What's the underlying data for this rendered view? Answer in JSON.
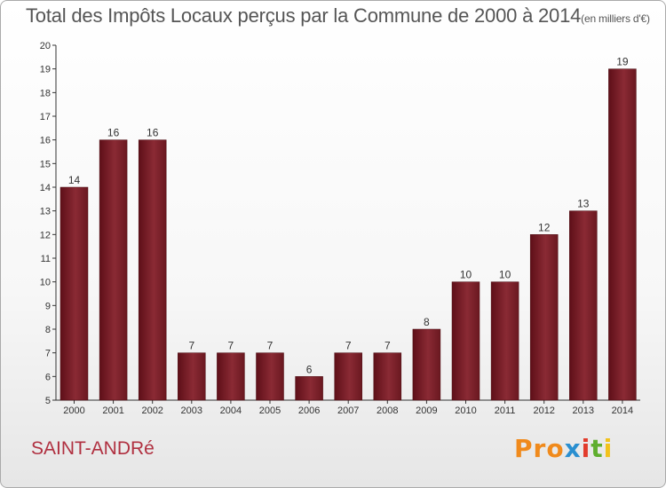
{
  "title": {
    "main": "Total des Impôts Locaux perçus par la Commune de 2000 à 2014",
    "unit": "(en milliers d'€)"
  },
  "commune": "SAINT-ANDRé",
  "logo": {
    "text": "Proxiti",
    "parts": [
      "Pro",
      "x",
      "i",
      "t",
      "i"
    ]
  },
  "colors": {
    "bar": "#7a1f28",
    "bar_light": "#9a3a44",
    "axis": "#333333",
    "commune": "#b03040"
  },
  "chart_data": {
    "type": "bar",
    "title": "Total des Impôts Locaux perçus par la Commune de 2000 à 2014",
    "xlabel": "",
    "ylabel": "",
    "ylim": [
      5,
      20
    ],
    "yticks": [
      5,
      6,
      7,
      8,
      9,
      10,
      11,
      12,
      13,
      14,
      15,
      16,
      17,
      18,
      19,
      20
    ],
    "categories": [
      "2000",
      "2001",
      "2002",
      "2003",
      "2004",
      "2005",
      "2006",
      "2007",
      "2008",
      "2009",
      "2010",
      "2011",
      "2012",
      "2013",
      "2014"
    ],
    "values": [
      14,
      16,
      16,
      7,
      7,
      7,
      6,
      7,
      7,
      8,
      10,
      10,
      12,
      13,
      19
    ],
    "grid": false
  }
}
